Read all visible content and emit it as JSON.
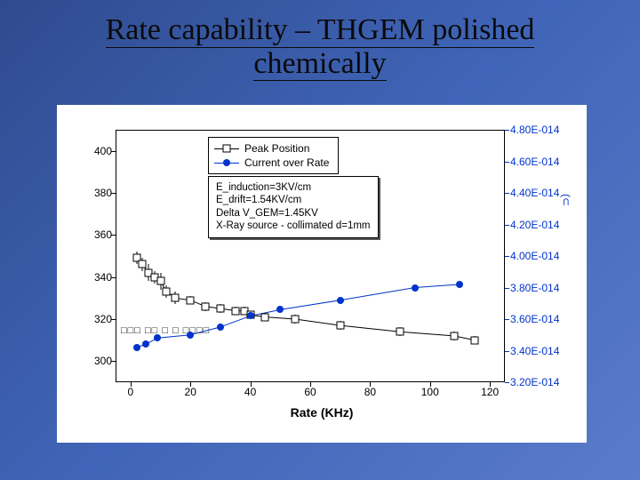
{
  "title_line1": "Rate capability – THGEM polished",
  "title_line2": "chemically",
  "chart": {
    "type": "scatter-line-dual-axis",
    "background_color": "#ffffff",
    "plot_border_color": "#000000",
    "xlabel": "Rate (KHz)",
    "xlabel_fontsize": 14,
    "xlim": [
      -5,
      125
    ],
    "xtick_step": 20,
    "xticks": [
      0,
      20,
      40,
      60,
      80,
      100,
      120
    ],
    "y_left": {
      "lim": [
        290,
        410
      ],
      "ticks": [
        300,
        320,
        340,
        360,
        380,
        400
      ],
      "color": "#000000",
      "tick_fontsize": 12
    },
    "y_right": {
      "lim": [
        3.2e-14,
        4.9e-14
      ],
      "ticks": [
        "3.20E-014",
        "3.40E-014",
        "3.60E-014",
        "3.80E-014",
        "4.00E-014",
        "4.20E-014",
        "4.40E-014",
        "4.60E-014",
        "4.80E-014"
      ],
      "tick_values_e14": [
        3.2,
        3.4,
        3.6,
        3.8,
        4.0,
        4.2,
        4.4,
        4.6,
        4.8
      ],
      "color": "#0033cc",
      "tick_fontsize": 12
    },
    "legend": {
      "position": "top-center",
      "font_size": 12,
      "border_color": "#000000",
      "items": [
        {
          "marker": "open-square",
          "line_color": "#000000",
          "label": "Peak Position"
        },
        {
          "marker": "filled-circle",
          "line_color": "#0033cc",
          "marker_color": "#0033cc",
          "label": "Current over Rate"
        }
      ]
    },
    "params_box": {
      "lines": [
        "E_induction=3KV/cm",
        "E_drift=1.54KV/cm",
        "Delta V_GEM=1.45KV",
        "X-Ray source - collimated d=1mm"
      ],
      "font_size": 11.5,
      "border_color": "#000000",
      "shadow_color": "#555555"
    },
    "series_peak": {
      "marker": "open-square",
      "marker_size": 8,
      "line_color": "#000000",
      "line_width": 1,
      "x": [
        2,
        4,
        6,
        8,
        10,
        12,
        15,
        20,
        25,
        30,
        35,
        38,
        40,
        45,
        55,
        70,
        90,
        108,
        115
      ],
      "y": [
        349,
        346,
        342,
        340,
        338,
        333,
        330,
        329,
        326,
        325,
        324,
        324,
        322,
        321,
        320,
        317,
        314,
        312,
        310
      ],
      "y_err": [
        3,
        3,
        4,
        3,
        4,
        3,
        3,
        2,
        2,
        2,
        2,
        2,
        2,
        2,
        2,
        2,
        2,
        2,
        2
      ]
    },
    "series_current": {
      "marker": "filled-circle",
      "marker_color": "#0033cc",
      "marker_size": 8,
      "line_color": "#0033cc",
      "line_width": 1,
      "x": [
        2,
        5,
        9,
        20,
        30,
        40,
        50,
        70,
        95,
        110
      ],
      "y_e14": [
        3.42,
        3.44,
        3.48,
        3.5,
        3.55,
        3.62,
        3.66,
        3.72,
        3.8,
        3.82
      ]
    },
    "note_right_axis_label_fragment": "(⊂"
  },
  "slide_bg_gradient": [
    "#2f4b8f",
    "#4065b8",
    "#5a7bc9"
  ]
}
